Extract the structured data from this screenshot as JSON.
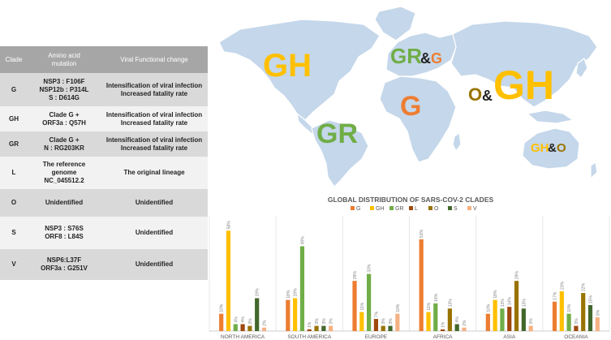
{
  "table": {
    "headers": [
      "Clade",
      "Amino acid\nmutation",
      "Viral Functional change"
    ],
    "rows": [
      {
        "clade": "G",
        "mutation": "NSP3 : F106F\nNSP12b : P314L\nS : D614G",
        "change": "Intensification of viral infection\nIncreased fatality rate"
      },
      {
        "clade": "GH",
        "mutation": "Clade G +\nORF3a : Q57H",
        "change": "Intensification of viral infection\nIncreased fatality rate"
      },
      {
        "clade": "GR",
        "mutation": "Clade G +\nN : RG203KR",
        "change": "Intensification of viral infection\nIncreased fatality rate"
      },
      {
        "clade": "L",
        "mutation": "The reference\ngenome\nNC_045512.2",
        "change": "The original lineage"
      },
      {
        "clade": "O",
        "mutation": "Unidentified",
        "change": "Unidentified"
      },
      {
        "clade": "S",
        "mutation": "NSP3 : S76S\nORF8 : L84S",
        "change": "Unidentified"
      },
      {
        "clade": "V",
        "mutation": "NSP6:L37F\nORF3a : G251V",
        "change": "Unidentified"
      }
    ]
  },
  "map_labels": {
    "north_america": "GH",
    "south_america": "GR",
    "europe_a": "GR",
    "europe_amp": "&",
    "europe_b": "G",
    "africa": "G",
    "asia_a": "O",
    "asia_amp": "&",
    "asia_b": "GH",
    "oceania_a": "GH",
    "oceania_amp": "&",
    "oceania_b": "O"
  },
  "colors": {
    "G": "#ed7d31",
    "GH": "#ffc000",
    "GR": "#70ad47",
    "L": "#9e480e",
    "O": "#997300",
    "S": "#43682b",
    "V": "#f4b183",
    "map_land": "#c5d7ea",
    "amp": "#222222"
  },
  "chart_data": {
    "type": "bar",
    "title": "GLOBAL DISTRIBUTION OF SARS-COV-2 CLADES",
    "categories": [
      "NORTH AMERICA",
      "SOUTH AMERICA",
      "EUROPE",
      "AFRICA",
      "ASIA",
      "OCEANIA"
    ],
    "series": [
      {
        "name": "G",
        "values": [
          10,
          18,
          29,
          53,
          10,
          17
        ]
      },
      {
        "name": "GH",
        "values": [
          58,
          19,
          11,
          11,
          18,
          23
        ]
      },
      {
        "name": "GR",
        "values": [
          4,
          49,
          33,
          16,
          13,
          10
        ]
      },
      {
        "name": "L",
        "values": [
          4,
          1,
          7,
          1,
          14,
          3
        ]
      },
      {
        "name": "O",
        "values": [
          3,
          3,
          3,
          13,
          29,
          22
        ]
      },
      {
        "name": "S",
        "values": [
          19,
          3,
          3,
          4,
          13,
          15
        ]
      },
      {
        "name": "V",
        "values": [
          2,
          3,
          10,
          2,
          3,
          8
        ]
      }
    ],
    "value_suffix": "%",
    "ylim": [
      0,
      60
    ],
    "legend": "top"
  }
}
